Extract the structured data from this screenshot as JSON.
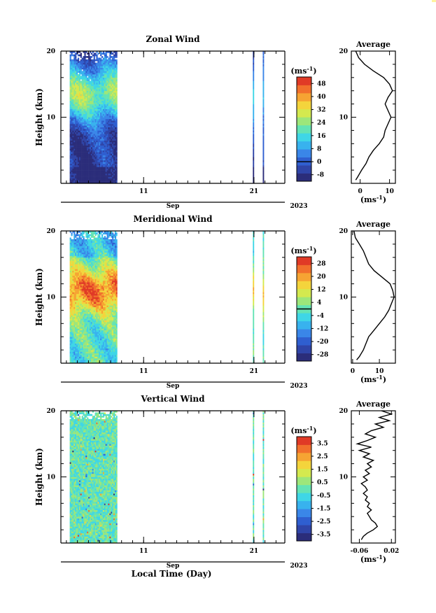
{
  "figure": {
    "xlabel": "Local Time (Day)",
    "month_label": "Sep",
    "year_label": "2023",
    "ylabel": "Height (km)",
    "unit_label": "(ms",
    "unit_sup": "-1",
    "units_xlabel": "(ms",
    "units_xlabel_sup": "-1",
    "average_title": "Average",
    "colormap": [
      "#2b2d7a",
      "#2f45a8",
      "#2f5fd0",
      "#3a86e8",
      "#38b2ee",
      "#3fd6e6",
      "#64e3b4",
      "#9de67a",
      "#d4e94f",
      "#f4d43c",
      "#f6a433",
      "#f1702c",
      "#e03a26"
    ],
    "tick_labels": {
      "x_days": [
        "11",
        "21"
      ],
      "heights": [
        "10",
        "20"
      ]
    }
  },
  "chart_data": [
    {
      "type": "heatmap",
      "title": "Zonal Wind",
      "xlabel": "Local Time (Day)",
      "ylabel": "Height (km)",
      "x_range_days": [
        3.5,
        23.8
      ],
      "ylim": [
        0,
        20
      ],
      "x_ticks": [
        {
          "day": 11,
          "label": "11"
        },
        {
          "day": 21,
          "label": "21"
        }
      ],
      "y_ticks": [
        {
          "value": 10,
          "label": "10"
        },
        {
          "value": 20,
          "label": "20"
        }
      ],
      "colorbar": {
        "units": "(ms-1)",
        "labels": [
          "48",
          "40",
          "32",
          "24",
          "16",
          "8",
          "0",
          "-8"
        ],
        "range": [
          -12,
          52
        ],
        "zero_line": 0
      },
      "data_segments_days": [
        [
          4.3,
          8.6
        ],
        [
          20.9,
          21.0
        ],
        [
          21.8,
          21.9
        ]
      ],
      "profile_description": "jet maximum ~14 km, weak winds near surface and above 18 km",
      "average_profile": {
        "title": "Average",
        "xlabel": "(ms-1)",
        "xlim": [
          -3,
          12
        ],
        "x_ticks": [
          "0",
          "10"
        ],
        "y_ticks": [
          "10",
          "20"
        ],
        "height_km": [
          0.5,
          1,
          2,
          3,
          4,
          5,
          6,
          7,
          8,
          9,
          10,
          11,
          12,
          13,
          14,
          15,
          16,
          17,
          18,
          19,
          20
        ],
        "values": [
          -1.5,
          -0.8,
          0.5,
          2,
          3,
          4.5,
          6.5,
          8,
          8.5,
          9.5,
          10.5,
          9.5,
          8.5,
          9.5,
          11,
          10,
          8,
          4.5,
          1.5,
          -0.5,
          -1.5
        ]
      }
    },
    {
      "type": "heatmap",
      "title": "Meridional Wind",
      "xlabel": "Local Time (Day)",
      "ylabel": "Height (km)",
      "x_range_days": [
        3.5,
        23.8
      ],
      "ylim": [
        0,
        20
      ],
      "x_ticks": [
        {
          "day": 11,
          "label": "11"
        },
        {
          "day": 21,
          "label": "21"
        }
      ],
      "y_ticks": [
        {
          "value": 10,
          "label": "10"
        },
        {
          "value": 20,
          "label": "20"
        }
      ],
      "colorbar": {
        "units": "(ms-1)",
        "labels": [
          "28",
          "20",
          "12",
          "4",
          "-4",
          "-12",
          "-20",
          "-28"
        ],
        "range": [
          -32,
          32
        ],
        "zero_line": 0
      },
      "data_segments_days": [
        [
          4.3,
          8.6
        ],
        [
          20.9,
          21.0
        ],
        [
          21.8,
          21.9
        ]
      ],
      "average_profile": {
        "title": "Average",
        "xlabel": "(ms-1)",
        "xlim": [
          -0.5,
          16
        ],
        "x_ticks": [
          "0",
          "10"
        ],
        "y_ticks": [
          "10",
          "20"
        ],
        "height_km": [
          0.5,
          1,
          2,
          3,
          4,
          5,
          6,
          7,
          8,
          9,
          10,
          11,
          12,
          13,
          14,
          15,
          16,
          17,
          18,
          19,
          20
        ],
        "values": [
          1.5,
          2.5,
          4,
          5,
          6,
          8,
          10,
          12,
          13.5,
          14.5,
          15.5,
          15,
          14,
          11,
          8,
          6,
          5,
          4,
          2.5,
          1,
          0.5
        ]
      }
    },
    {
      "type": "heatmap",
      "title": "Vertical Wind",
      "xlabel": "Local Time (Day)",
      "ylabel": "Height (km)",
      "x_range_days": [
        3.5,
        23.8
      ],
      "ylim": [
        0,
        20
      ],
      "x_ticks": [
        {
          "day": 11,
          "label": "11"
        },
        {
          "day": 21,
          "label": "21"
        }
      ],
      "y_ticks": [
        {
          "value": 10,
          "label": "10"
        },
        {
          "value": 20,
          "label": "20"
        }
      ],
      "colorbar": {
        "units": "(ms-1)",
        "labels": [
          "3.5",
          "2.5",
          "1.5",
          "0.5",
          "-0.5",
          "-1.5",
          "-2.5",
          "-3.5"
        ],
        "range": [
          -4,
          4
        ],
        "zero_line": null
      },
      "data_segments_days": [
        [
          4.3,
          8.6
        ],
        [
          20.9,
          21.0
        ],
        [
          21.8,
          21.9
        ]
      ],
      "average_profile": {
        "title": "Average",
        "xlabel": "(ms-1)",
        "xlim": [
          -0.08,
          0.03
        ],
        "x_ticks": [
          "-0.06",
          "0.02"
        ],
        "y_ticks": [
          "10",
          "20"
        ],
        "height_km": [
          0.5,
          1,
          1.5,
          2,
          2.5,
          3,
          3.5,
          4,
          4.5,
          5,
          5.5,
          6,
          6.5,
          7,
          7.5,
          8,
          8.5,
          9,
          9.5,
          10,
          10.5,
          11,
          11.5,
          12,
          12.5,
          13,
          13.5,
          14,
          14.5,
          15,
          15.5,
          16,
          16.5,
          17,
          17.5,
          18,
          18.5,
          19,
          19.5,
          20
        ],
        "values": [
          -0.055,
          -0.05,
          -0.04,
          -0.025,
          -0.015,
          -0.02,
          -0.03,
          -0.035,
          -0.04,
          -0.03,
          -0.04,
          -0.035,
          -0.045,
          -0.04,
          -0.05,
          -0.04,
          -0.045,
          -0.055,
          -0.04,
          -0.05,
          -0.035,
          -0.045,
          -0.03,
          -0.04,
          -0.025,
          -0.05,
          -0.035,
          -0.06,
          -0.03,
          -0.065,
          -0.04,
          -0.02,
          -0.045,
          -0.03,
          0.0,
          -0.02,
          0.015,
          -0.01,
          0.02,
          -0.005
        ]
      }
    }
  ]
}
